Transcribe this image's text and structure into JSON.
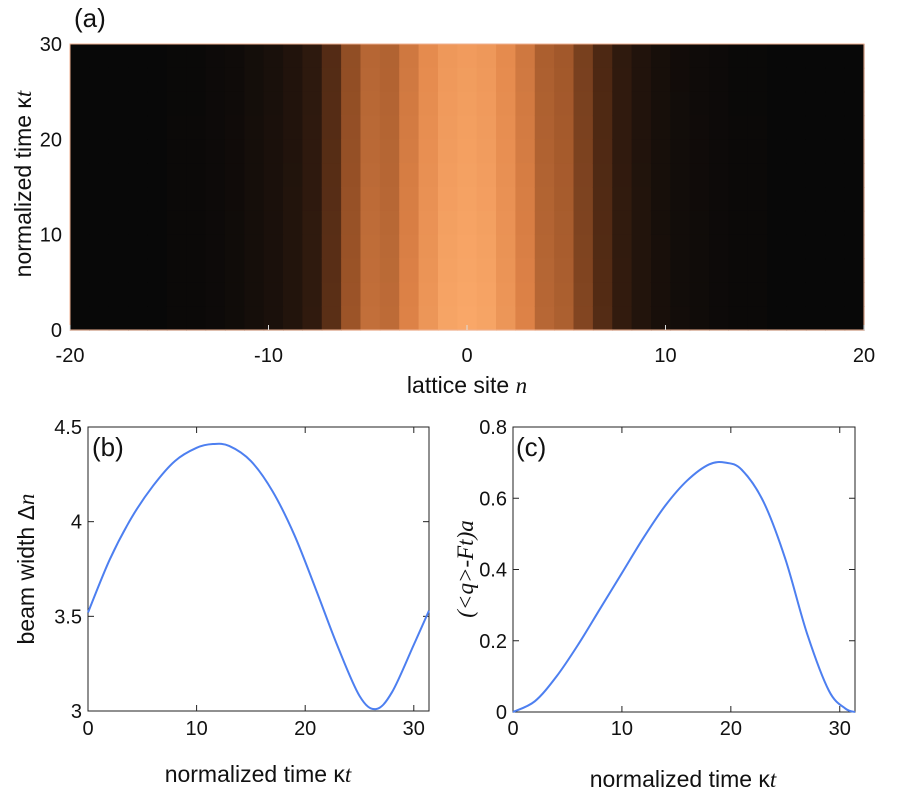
{
  "chart_data": [
    {
      "type": "heatmap",
      "panel_label": "(a)",
      "xlabel_text": "lattice site ",
      "xlabel_var": "n",
      "ylabel_text": "normalized time  κ",
      "ylabel_var": "t",
      "xlim": [
        -20,
        20
      ],
      "ylim": [
        0,
        30
      ],
      "xticks": [
        -20,
        -10,
        0,
        10,
        20
      ],
      "yticks": [
        0,
        10,
        20,
        30
      ],
      "colormap": [
        "#080808",
        "#4a2612",
        "#9c5428",
        "#e08448",
        "#ffb070"
      ],
      "site_intensity": {
        "sites": [
          -20,
          -19,
          -18,
          -17,
          -16,
          -15,
          -14,
          -13,
          -12,
          -11,
          -10,
          -9,
          -8,
          -7,
          -6,
          -5,
          -4,
          -3,
          -2,
          -1,
          0,
          1,
          2,
          3,
          4,
          5,
          6,
          7,
          8,
          9,
          10,
          11,
          12,
          13,
          14,
          15,
          16,
          17,
          18,
          19,
          20
        ],
        "values": [
          0.0,
          0.0,
          0.0,
          0.0,
          0.0,
          0.01,
          0.01,
          0.02,
          0.03,
          0.05,
          0.07,
          0.1,
          0.15,
          0.3,
          0.5,
          0.64,
          0.62,
          0.74,
          0.85,
          0.93,
          0.95,
          0.93,
          0.85,
          0.74,
          0.6,
          0.56,
          0.42,
          0.28,
          0.16,
          0.1,
          0.06,
          0.04,
          0.03,
          0.02,
          0.01,
          0.01,
          0.0,
          0.0,
          0.0,
          0.0,
          0.0
        ]
      }
    },
    {
      "type": "line",
      "panel_label": "(b)",
      "xlabel_text": "normalized time κ",
      "xlabel_var": "t",
      "ylabel_text": "beam width  Δ",
      "ylabel_var": "n",
      "xlim": [
        0,
        31.4
      ],
      "ylim": [
        3,
        4.5
      ],
      "xticks": [
        0,
        10,
        20,
        30
      ],
      "yticks": [
        3,
        3.5,
        4,
        4.5
      ],
      "ytick_labels": [
        "3",
        "3.5",
        "4",
        "4.5"
      ],
      "line_color": "#4d7ff0",
      "series": [
        {
          "name": "beam width",
          "x": [
            0,
            2,
            4,
            6,
            8,
            10,
            11.5,
            13,
            15,
            17,
            19,
            21,
            23,
            25,
            26.5,
            28,
            30,
            31.4
          ],
          "y": [
            3.52,
            3.8,
            4.02,
            4.19,
            4.32,
            4.39,
            4.41,
            4.4,
            4.32,
            4.16,
            3.93,
            3.64,
            3.34,
            3.08,
            3.01,
            3.1,
            3.35,
            3.53
          ]
        }
      ]
    },
    {
      "type": "line",
      "panel_label": "(c)",
      "xlabel_text": "normalized time κ",
      "xlabel_var": "t",
      "ylabel_text": "(<q>-Ft)a",
      "xlim": [
        0,
        31.4
      ],
      "ylim": [
        0,
        0.8
      ],
      "xticks": [
        0,
        10,
        20,
        30
      ],
      "yticks": [
        0,
        0.2,
        0.4,
        0.6,
        0.8
      ],
      "ytick_labels": [
        "0",
        "0.2",
        "0.4",
        "0.6",
        "0.8"
      ],
      "line_color": "#4d7ff0",
      "series": [
        {
          "name": "(<q>-Ft)a",
          "x": [
            0,
            2,
            4,
            6,
            8,
            10,
            12,
            14,
            16,
            18,
            19.5,
            21,
            23,
            25,
            27,
            29,
            30.5,
            31.4
          ],
          "y": [
            0.0,
            0.03,
            0.1,
            0.19,
            0.29,
            0.39,
            0.49,
            0.58,
            0.65,
            0.695,
            0.7,
            0.68,
            0.59,
            0.43,
            0.22,
            0.06,
            0.01,
            0.0
          ]
        }
      ]
    }
  ]
}
